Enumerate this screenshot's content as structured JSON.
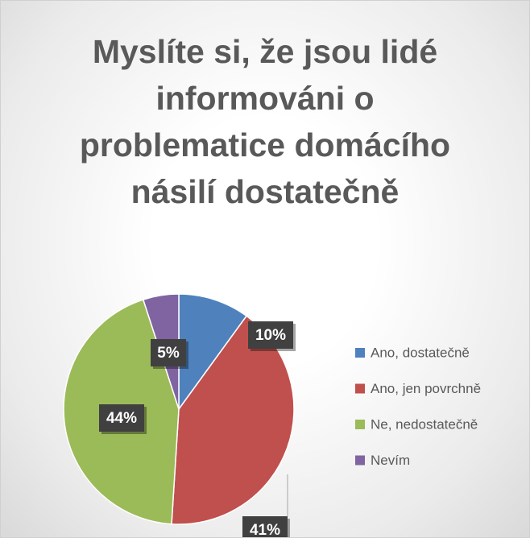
{
  "chart_data": {
    "type": "pie",
    "title": "Myslíte si, že jsou lidé informováni o problematice domácího násilí dostatečně",
    "categories": [
      "Ano, dostatečně",
      "Ano, jen povrchně",
      "Ne, nedostatečně",
      "Nevím"
    ],
    "values": [
      10,
      41,
      44,
      5
    ],
    "value_labels": [
      "10%",
      "41%",
      "44%",
      "5%"
    ],
    "colors": [
      "#4f81bd",
      "#c0504d",
      "#9bbb59",
      "#8064a2"
    ],
    "legend": "right"
  }
}
